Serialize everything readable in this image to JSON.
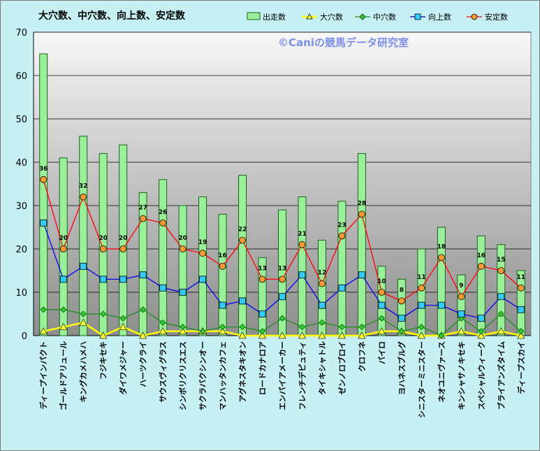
{
  "chart_data": {
    "type": "bar",
    "title": "大穴数、中穴数、向上数、安定数",
    "watermark": "©Caniの競馬データ研究室",
    "ylim": [
      0,
      70
    ],
    "yticks": [
      0,
      10,
      20,
      30,
      40,
      50,
      60,
      70
    ],
    "grid": true,
    "legend_position": "top-right",
    "categories": [
      "ディープインパクト",
      "ゴールドアリュール",
      "キングカメハメハ",
      "フジキセキ",
      "ダイワメジャー",
      "ハーツクライ",
      "サウスヴィグラス",
      "シンボリクリスエス",
      "サクラバクシンオー",
      "マンハッタンカフェ",
      "アグネスタキオン",
      "ロードカナロア",
      "エンパイアメーカー",
      "フレンチデピュティ",
      "タイキシャトル",
      "ゼンノロブロイ",
      "クロフネ",
      "パイロ",
      "ヨハネスブルグ",
      "シニスターミニスター",
      "ネオユニヴァース",
      "キンシャサノキセキ",
      "スペシャルウィーク",
      "ブライアンズタイム",
      "ディープスカイ"
    ],
    "series": [
      {
        "name": "出走数",
        "kind": "bar",
        "color": "#99f099",
        "values": [
          65,
          41,
          46,
          42,
          44,
          33,
          36,
          30,
          32,
          28,
          37,
          18,
          29,
          32,
          22,
          31,
          42,
          16,
          13,
          20,
          25,
          14,
          23,
          21,
          15
        ]
      },
      {
        "name": "大穴数",
        "kind": "line",
        "color": "#ffff00",
        "marker": "triangle",
        "values": [
          1,
          2,
          3,
          0,
          2,
          0,
          1,
          1,
          1,
          1,
          0,
          0,
          0,
          0,
          0,
          0,
          0,
          1,
          1,
          0,
          0,
          1,
          0,
          1,
          0
        ]
      },
      {
        "name": "中穴数",
        "kind": "line",
        "color": "#1a8f1a",
        "marker": "diamond",
        "values": [
          6,
          6,
          5,
          5,
          4,
          6,
          3,
          2,
          1,
          2,
          2,
          1,
          4,
          2,
          3,
          2,
          2,
          4,
          1,
          2,
          0,
          4,
          1,
          5,
          1
        ]
      },
      {
        "name": "向上数",
        "kind": "line",
        "color": "#0000ee",
        "marker": "square",
        "values": [
          26,
          13,
          16,
          13,
          13,
          14,
          11,
          10,
          13,
          7,
          8,
          5,
          9,
          14,
          7,
          11,
          14,
          7,
          4,
          7,
          7,
          5,
          4,
          9,
          6
        ]
      },
      {
        "name": "安定数",
        "kind": "line",
        "color": "#ff0000",
        "marker": "circle",
        "labels": true,
        "values": [
          36,
          20,
          32,
          20,
          20,
          27,
          26,
          20,
          19,
          16,
          22,
          13,
          13,
          21,
          12,
          23,
          28,
          10,
          8,
          11,
          18,
          9,
          16,
          15,
          11
        ]
      }
    ]
  }
}
